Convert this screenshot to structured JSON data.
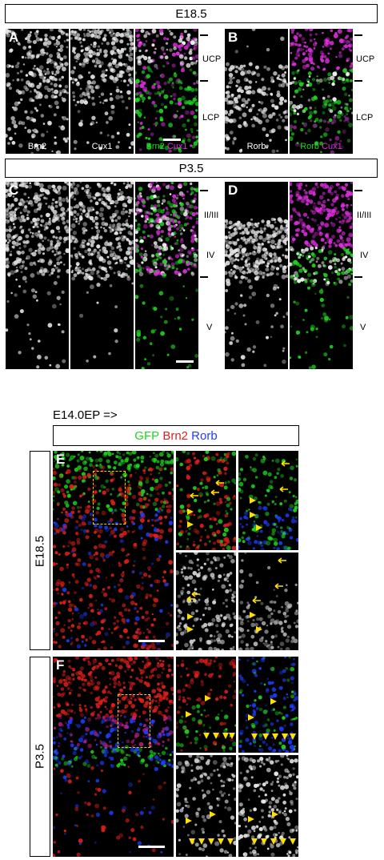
{
  "top": {
    "e185_header": "E18.5",
    "p35_header": "P3.5",
    "panels": {
      "A": "A",
      "B": "B",
      "C": "C",
      "D": "D",
      "E": "E",
      "F": "F"
    },
    "channel_labels": {
      "brn2": "Brn2",
      "cux1": "Cux1",
      "rorb": "Rorb",
      "merge_brn2": "Brn2",
      "merge_cux1": "Cux1",
      "merge_rorb": "Rorb",
      "merge_cux1_b": "Cux1"
    },
    "layers_e": {
      "ucp": "UCP",
      "lcp": "LCP"
    },
    "layers_p": {
      "l23": "II/III",
      "l4": "IV",
      "l5": "V"
    }
  },
  "bottom": {
    "ep_label": "E14.0EP =>",
    "legend": {
      "gfp": "GFP",
      "brn2": "Brn2",
      "rorb": "Rorb"
    },
    "side_e": "E18.5",
    "side_p": "P3.5"
  },
  "colors": {
    "green": "#1fd61f",
    "magenta": "#e02ee0",
    "red": "#e0201a",
    "blue": "#1e3cff",
    "yellow": "#ffe000",
    "white": "#ffffff"
  }
}
